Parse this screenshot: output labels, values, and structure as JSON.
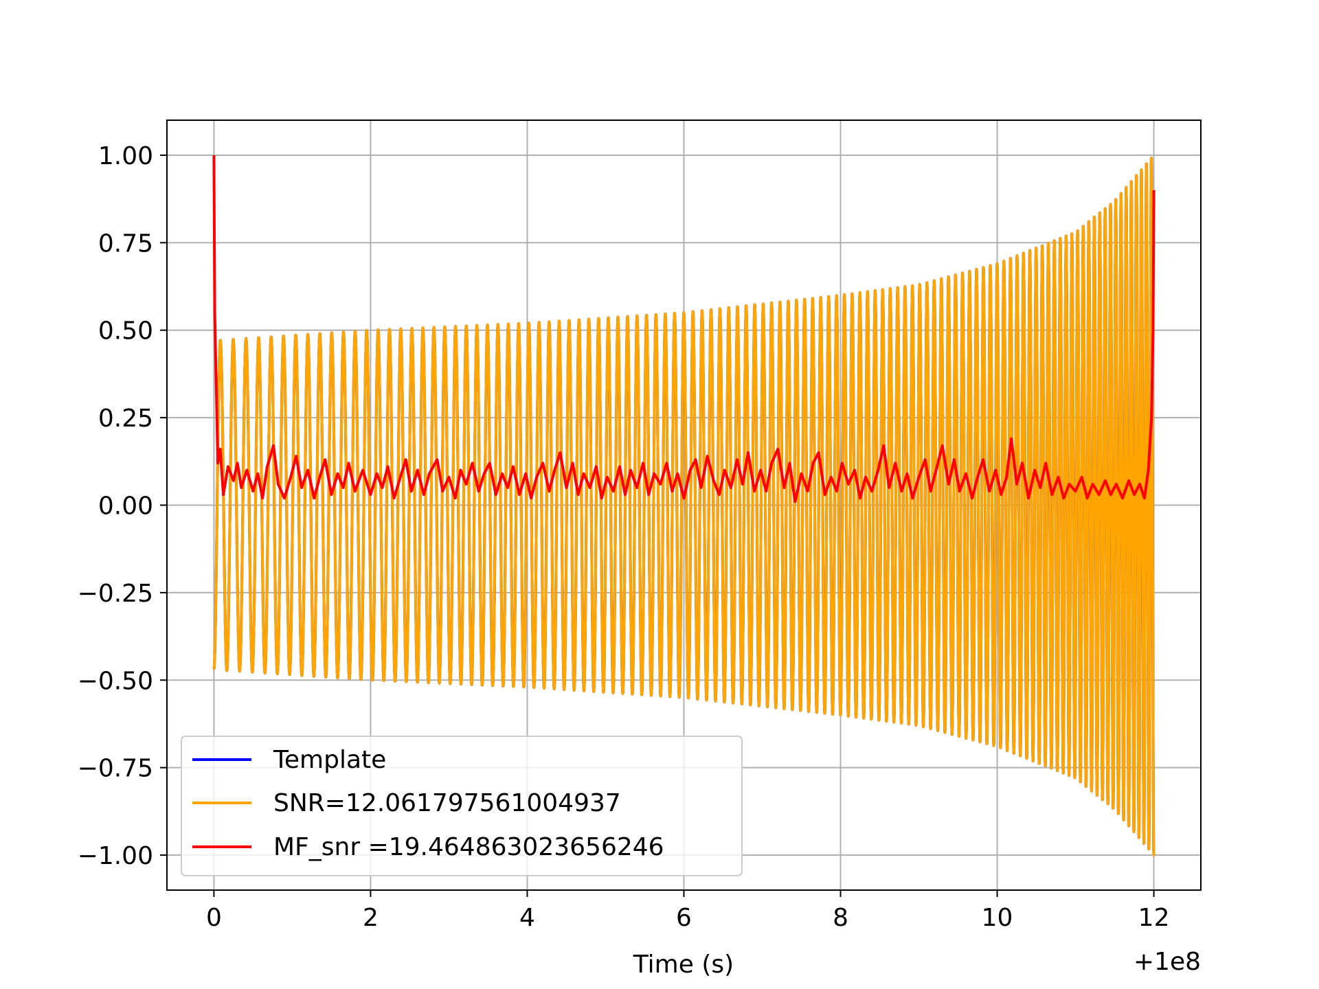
{
  "chart_data": {
    "type": "line",
    "title": "",
    "xlabel": "Time (s)",
    "ylabel": "",
    "x_offset_label": "+1e8",
    "xlim": [
      -0.6,
      12.6
    ],
    "ylim": [
      -1.1,
      1.1
    ],
    "x_ticks": [
      0,
      2,
      4,
      6,
      8,
      10,
      12
    ],
    "x_tick_labels": [
      "0",
      "2",
      "4",
      "6",
      "8",
      "10",
      "12"
    ],
    "y_ticks": [
      1.0,
      0.75,
      0.5,
      0.25,
      0.0,
      -0.25,
      -0.5,
      -0.75,
      -1.0
    ],
    "y_tick_labels": [
      "1.00",
      "0.75",
      "0.50",
      "0.25",
      "0.00",
      "−0.25",
      "−0.50",
      "−0.75",
      "−1.00"
    ],
    "grid": true,
    "legend_position": "lower-left",
    "series": [
      {
        "name": "Template",
        "color": "#0000ff",
        "kind": "chirp",
        "t_start": 0.0,
        "t_end": 12.0,
        "amplitude_envelope": [
          [
            0.0,
            0.47
          ],
          [
            2.0,
            0.5
          ],
          [
            4.0,
            0.52
          ],
          [
            6.0,
            0.55
          ],
          [
            8.0,
            0.6
          ],
          [
            9.0,
            0.63
          ],
          [
            10.0,
            0.69
          ],
          [
            11.0,
            0.78
          ],
          [
            11.5,
            0.87
          ],
          [
            12.0,
            1.0
          ]
        ],
        "frequency_hz_envelope": [
          [
            0.0,
            6.0
          ],
          [
            6.0,
            8.5
          ],
          [
            10.0,
            11.5
          ],
          [
            12.0,
            16.0
          ]
        ]
      },
      {
        "name": "SNR=12.061797561004937",
        "color": "#ffa500",
        "kind": "chirp",
        "t_start": 0.0,
        "t_end": 12.0,
        "amplitude_envelope": [
          [
            0.0,
            0.47
          ],
          [
            2.0,
            0.5
          ],
          [
            4.0,
            0.52
          ],
          [
            6.0,
            0.55
          ],
          [
            8.0,
            0.6
          ],
          [
            9.0,
            0.63
          ],
          [
            10.0,
            0.69
          ],
          [
            11.0,
            0.78
          ],
          [
            11.5,
            0.87
          ],
          [
            12.0,
            1.0
          ]
        ],
        "frequency_hz_envelope": [
          [
            0.0,
            6.0
          ],
          [
            6.0,
            8.5
          ],
          [
            10.0,
            11.5
          ],
          [
            12.0,
            16.0
          ]
        ]
      },
      {
        "name": "MF_snr =19.464863023656246",
        "color": "#ff0000",
        "kind": "trace",
        "points": [
          [
            0.0,
            1.0
          ],
          [
            0.01,
            0.55
          ],
          [
            0.05,
            0.12
          ],
          [
            0.08,
            0.16
          ],
          [
            0.12,
            0.03
          ],
          [
            0.18,
            0.11
          ],
          [
            0.25,
            0.07
          ],
          [
            0.3,
            0.12
          ],
          [
            0.35,
            0.05
          ],
          [
            0.42,
            0.1
          ],
          [
            0.5,
            0.04
          ],
          [
            0.56,
            0.09
          ],
          [
            0.62,
            0.02
          ],
          [
            0.68,
            0.11
          ],
          [
            0.76,
            0.17
          ],
          [
            0.82,
            0.06
          ],
          [
            0.9,
            0.02
          ],
          [
            0.98,
            0.08
          ],
          [
            1.05,
            0.14
          ],
          [
            1.12,
            0.05
          ],
          [
            1.2,
            0.1
          ],
          [
            1.28,
            0.02
          ],
          [
            1.35,
            0.08
          ],
          [
            1.42,
            0.13
          ],
          [
            1.5,
            0.03
          ],
          [
            1.58,
            0.09
          ],
          [
            1.65,
            0.05
          ],
          [
            1.72,
            0.12
          ],
          [
            1.8,
            0.04
          ],
          [
            1.9,
            0.1
          ],
          [
            2.0,
            0.03
          ],
          [
            2.08,
            0.09
          ],
          [
            2.15,
            0.05
          ],
          [
            2.22,
            0.11
          ],
          [
            2.3,
            0.02
          ],
          [
            2.38,
            0.08
          ],
          [
            2.45,
            0.13
          ],
          [
            2.52,
            0.04
          ],
          [
            2.6,
            0.1
          ],
          [
            2.68,
            0.03
          ],
          [
            2.75,
            0.09
          ],
          [
            2.85,
            0.13
          ],
          [
            2.92,
            0.04
          ],
          [
            3.0,
            0.08
          ],
          [
            3.08,
            0.02
          ],
          [
            3.15,
            0.1
          ],
          [
            3.22,
            0.06
          ],
          [
            3.3,
            0.12
          ],
          [
            3.38,
            0.04
          ],
          [
            3.45,
            0.09
          ],
          [
            3.52,
            0.12
          ],
          [
            3.6,
            0.03
          ],
          [
            3.68,
            0.09
          ],
          [
            3.75,
            0.05
          ],
          [
            3.82,
            0.11
          ],
          [
            3.9,
            0.03
          ],
          [
            3.98,
            0.09
          ],
          [
            4.05,
            0.02
          ],
          [
            4.12,
            0.08
          ],
          [
            4.2,
            0.12
          ],
          [
            4.28,
            0.04
          ],
          [
            4.35,
            0.1
          ],
          [
            4.42,
            0.15
          ],
          [
            4.5,
            0.05
          ],
          [
            4.58,
            0.12
          ],
          [
            4.65,
            0.03
          ],
          [
            4.72,
            0.09
          ],
          [
            4.8,
            0.05
          ],
          [
            4.88,
            0.11
          ],
          [
            4.95,
            0.02
          ],
          [
            5.02,
            0.08
          ],
          [
            5.1,
            0.04
          ],
          [
            5.18,
            0.11
          ],
          [
            5.25,
            0.03
          ],
          [
            5.32,
            0.1
          ],
          [
            5.4,
            0.05
          ],
          [
            5.48,
            0.12
          ],
          [
            5.55,
            0.03
          ],
          [
            5.62,
            0.09
          ],
          [
            5.7,
            0.06
          ],
          [
            5.78,
            0.12
          ],
          [
            5.85,
            0.04
          ],
          [
            5.92,
            0.09
          ],
          [
            6.0,
            0.02
          ],
          [
            6.08,
            0.1
          ],
          [
            6.15,
            0.13
          ],
          [
            6.22,
            0.05
          ],
          [
            6.3,
            0.14
          ],
          [
            6.38,
            0.07
          ],
          [
            6.45,
            0.03
          ],
          [
            6.52,
            0.1
          ],
          [
            6.6,
            0.05
          ],
          [
            6.68,
            0.13
          ],
          [
            6.75,
            0.06
          ],
          [
            6.82,
            0.15
          ],
          [
            6.9,
            0.04
          ],
          [
            6.98,
            0.1
          ],
          [
            7.05,
            0.04
          ],
          [
            7.12,
            0.12
          ],
          [
            7.2,
            0.16
          ],
          [
            7.28,
            0.05
          ],
          [
            7.35,
            0.12
          ],
          [
            7.42,
            0.01
          ],
          [
            7.5,
            0.09
          ],
          [
            7.58,
            0.04
          ],
          [
            7.65,
            0.12
          ],
          [
            7.72,
            0.15
          ],
          [
            7.8,
            0.03
          ],
          [
            7.88,
            0.08
          ],
          [
            7.95,
            0.04
          ],
          [
            8.02,
            0.12
          ],
          [
            8.1,
            0.06
          ],
          [
            8.18,
            0.1
          ],
          [
            8.25,
            0.02
          ],
          [
            8.32,
            0.08
          ],
          [
            8.4,
            0.04
          ],
          [
            8.48,
            0.1
          ],
          [
            8.55,
            0.17
          ],
          [
            8.62,
            0.05
          ],
          [
            8.7,
            0.12
          ],
          [
            8.78,
            0.04
          ],
          [
            8.85,
            0.09
          ],
          [
            8.92,
            0.02
          ],
          [
            9.0,
            0.08
          ],
          [
            9.08,
            0.13
          ],
          [
            9.15,
            0.04
          ],
          [
            9.22,
            0.1
          ],
          [
            9.3,
            0.17
          ],
          [
            9.38,
            0.06
          ],
          [
            9.45,
            0.13
          ],
          [
            9.52,
            0.04
          ],
          [
            9.6,
            0.09
          ],
          [
            9.68,
            0.02
          ],
          [
            9.75,
            0.08
          ],
          [
            9.82,
            0.13
          ],
          [
            9.9,
            0.04
          ],
          [
            9.98,
            0.1
          ],
          [
            10.05,
            0.03
          ],
          [
            10.12,
            0.08
          ],
          [
            10.18,
            0.19
          ],
          [
            10.25,
            0.06
          ],
          [
            10.32,
            0.12
          ],
          [
            10.4,
            0.02
          ],
          [
            10.48,
            0.1
          ],
          [
            10.55,
            0.05
          ],
          [
            10.62,
            0.12
          ],
          [
            10.7,
            0.03
          ],
          [
            10.78,
            0.08
          ],
          [
            10.85,
            0.02
          ],
          [
            10.92,
            0.06
          ],
          [
            11.0,
            0.04
          ],
          [
            11.08,
            0.08
          ],
          [
            11.15,
            0.02
          ],
          [
            11.22,
            0.06
          ],
          [
            11.3,
            0.03
          ],
          [
            11.38,
            0.07
          ],
          [
            11.45,
            0.03
          ],
          [
            11.52,
            0.06
          ],
          [
            11.6,
            0.02
          ],
          [
            11.68,
            0.07
          ],
          [
            11.75,
            0.03
          ],
          [
            11.82,
            0.06
          ],
          [
            11.88,
            0.02
          ],
          [
            11.93,
            0.1
          ],
          [
            11.97,
            0.25
          ],
          [
            11.99,
            0.5
          ],
          [
            12.0,
            0.9
          ]
        ]
      }
    ]
  }
}
